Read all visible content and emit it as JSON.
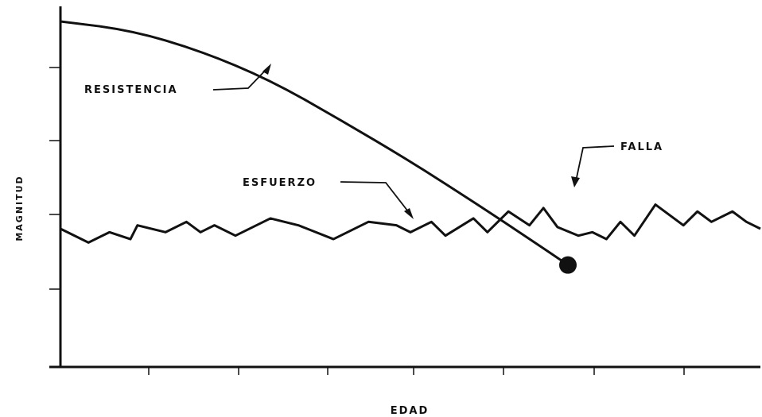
{
  "chart_data": {
    "type": "line",
    "title": "",
    "xlabel": "EDAD",
    "ylabel": "MAGNITUD",
    "xlim": [
      0,
      100
    ],
    "ylim": [
      0,
      100
    ],
    "grid": false,
    "x_ticks": 8,
    "y_ticks": 5,
    "series": [
      {
        "name": "RESISTENCIA",
        "x": [
          0,
          10,
          20,
          30,
          40,
          50,
          60,
          70,
          72.5
        ],
        "y": [
          100,
          97.5,
          91.5,
          83,
          71.5,
          59.5,
          46.5,
          33,
          29.5
        ]
      },
      {
        "name": "ESFUERZO",
        "x": [
          0,
          4,
          7,
          10,
          11,
          15,
          18,
          20,
          22,
          25,
          30,
          34,
          39,
          44,
          48,
          50,
          53,
          55,
          59,
          61,
          64,
          67,
          69,
          71,
          74,
          76,
          78,
          80,
          82,
          85,
          89,
          91,
          93,
          96,
          98,
          100
        ],
        "y": [
          40,
          36,
          39,
          37,
          41,
          39,
          42,
          39,
          41,
          38,
          43,
          41,
          37,
          42,
          41,
          39,
          42,
          38,
          43,
          39,
          45,
          41,
          46,
          40.5,
          38,
          39,
          37,
          42,
          38,
          47,
          41,
          45,
          42,
          45,
          42,
          40
        ]
      }
    ],
    "annotations": [
      {
        "text": "RESISTENCIA"
      },
      {
        "text": "ESFUERZO"
      },
      {
        "text": "FALLA",
        "x": 72.5,
        "y": 29.5
      }
    ]
  }
}
